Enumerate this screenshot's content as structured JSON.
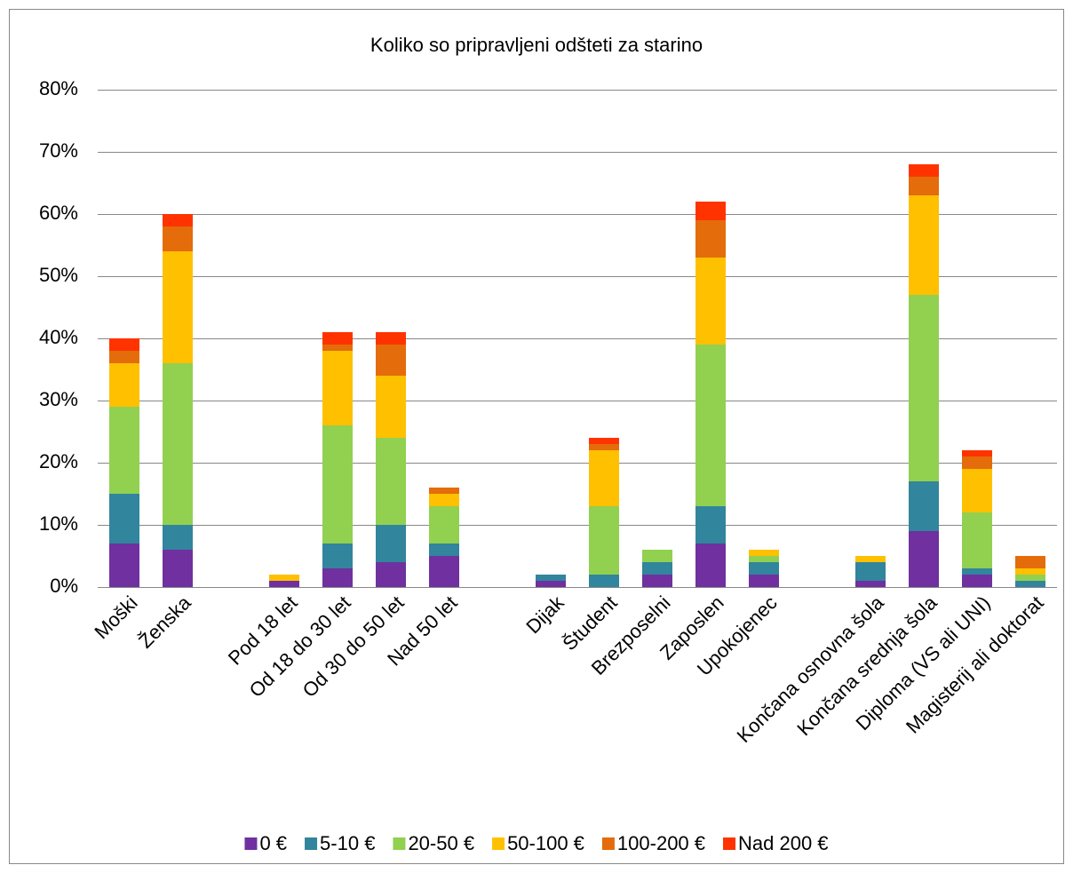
{
  "chart_data": {
    "type": "stacked_bar",
    "title": "Koliko so pripravljeni odšteti za starino",
    "categories": [
      "Moški",
      "Ženska",
      null,
      "Pod 18 let",
      "Od 18 do 30 let",
      "Od 30 do 50 let",
      "Nad 50 let",
      null,
      "Dijak",
      "Študent",
      "Brezposelni",
      "Zaposlen",
      "Upokojenec",
      null,
      "Končana osnovna šola",
      "Končana srednja šola",
      "Diploma (VS ali UNI)",
      "Magisterij ali doktorat"
    ],
    "series": [
      {
        "name": "0 €",
        "color": "#7030a0",
        "values": [
          7,
          6,
          null,
          1,
          3,
          4,
          5,
          null,
          1,
          0,
          2,
          7,
          2,
          null,
          1,
          9,
          2,
          0
        ]
      },
      {
        "name": "5-10 €",
        "color": "#31859c",
        "values": [
          8,
          4,
          null,
          0,
          4,
          6,
          2,
          null,
          1,
          2,
          2,
          6,
          2,
          null,
          3,
          8,
          1,
          1
        ]
      },
      {
        "name": "20-50 €",
        "color": "#92d050",
        "values": [
          14,
          26,
          null,
          0,
          19,
          14,
          6,
          null,
          0,
          11,
          2,
          26,
          1,
          null,
          0,
          30,
          9,
          1
        ]
      },
      {
        "name": "50-100 €",
        "color": "#ffc000",
        "values": [
          7,
          18,
          null,
          1,
          12,
          10,
          2,
          null,
          0,
          9,
          0,
          14,
          1,
          null,
          1,
          16,
          7,
          1
        ]
      },
      {
        "name": "100-200 €",
        "color": "#e46c0a",
        "values": [
          2,
          4,
          null,
          0,
          1,
          5,
          1,
          null,
          0,
          1,
          0,
          6,
          0,
          null,
          0,
          3,
          2,
          2
        ]
      },
      {
        "name": "Nad 200 €",
        "color": "#ff3300",
        "values": [
          2,
          2,
          null,
          0,
          2,
          2,
          0,
          null,
          0,
          1,
          0,
          3,
          0,
          null,
          0,
          2,
          1,
          0
        ]
      }
    ],
    "ylim": [
      0,
      80
    ],
    "yticks": [
      {
        "value": 0,
        "label": "0%"
      },
      {
        "value": 10,
        "label": "10%"
      },
      {
        "value": 20,
        "label": "20%"
      },
      {
        "value": 30,
        "label": "30%"
      },
      {
        "value": 40,
        "label": "40%"
      },
      {
        "value": 50,
        "label": "50%"
      },
      {
        "value": 60,
        "label": "60%"
      },
      {
        "value": 70,
        "label": "70%"
      },
      {
        "value": 80,
        "label": "80%"
      }
    ],
    "grid": true,
    "legend": "bottom"
  }
}
